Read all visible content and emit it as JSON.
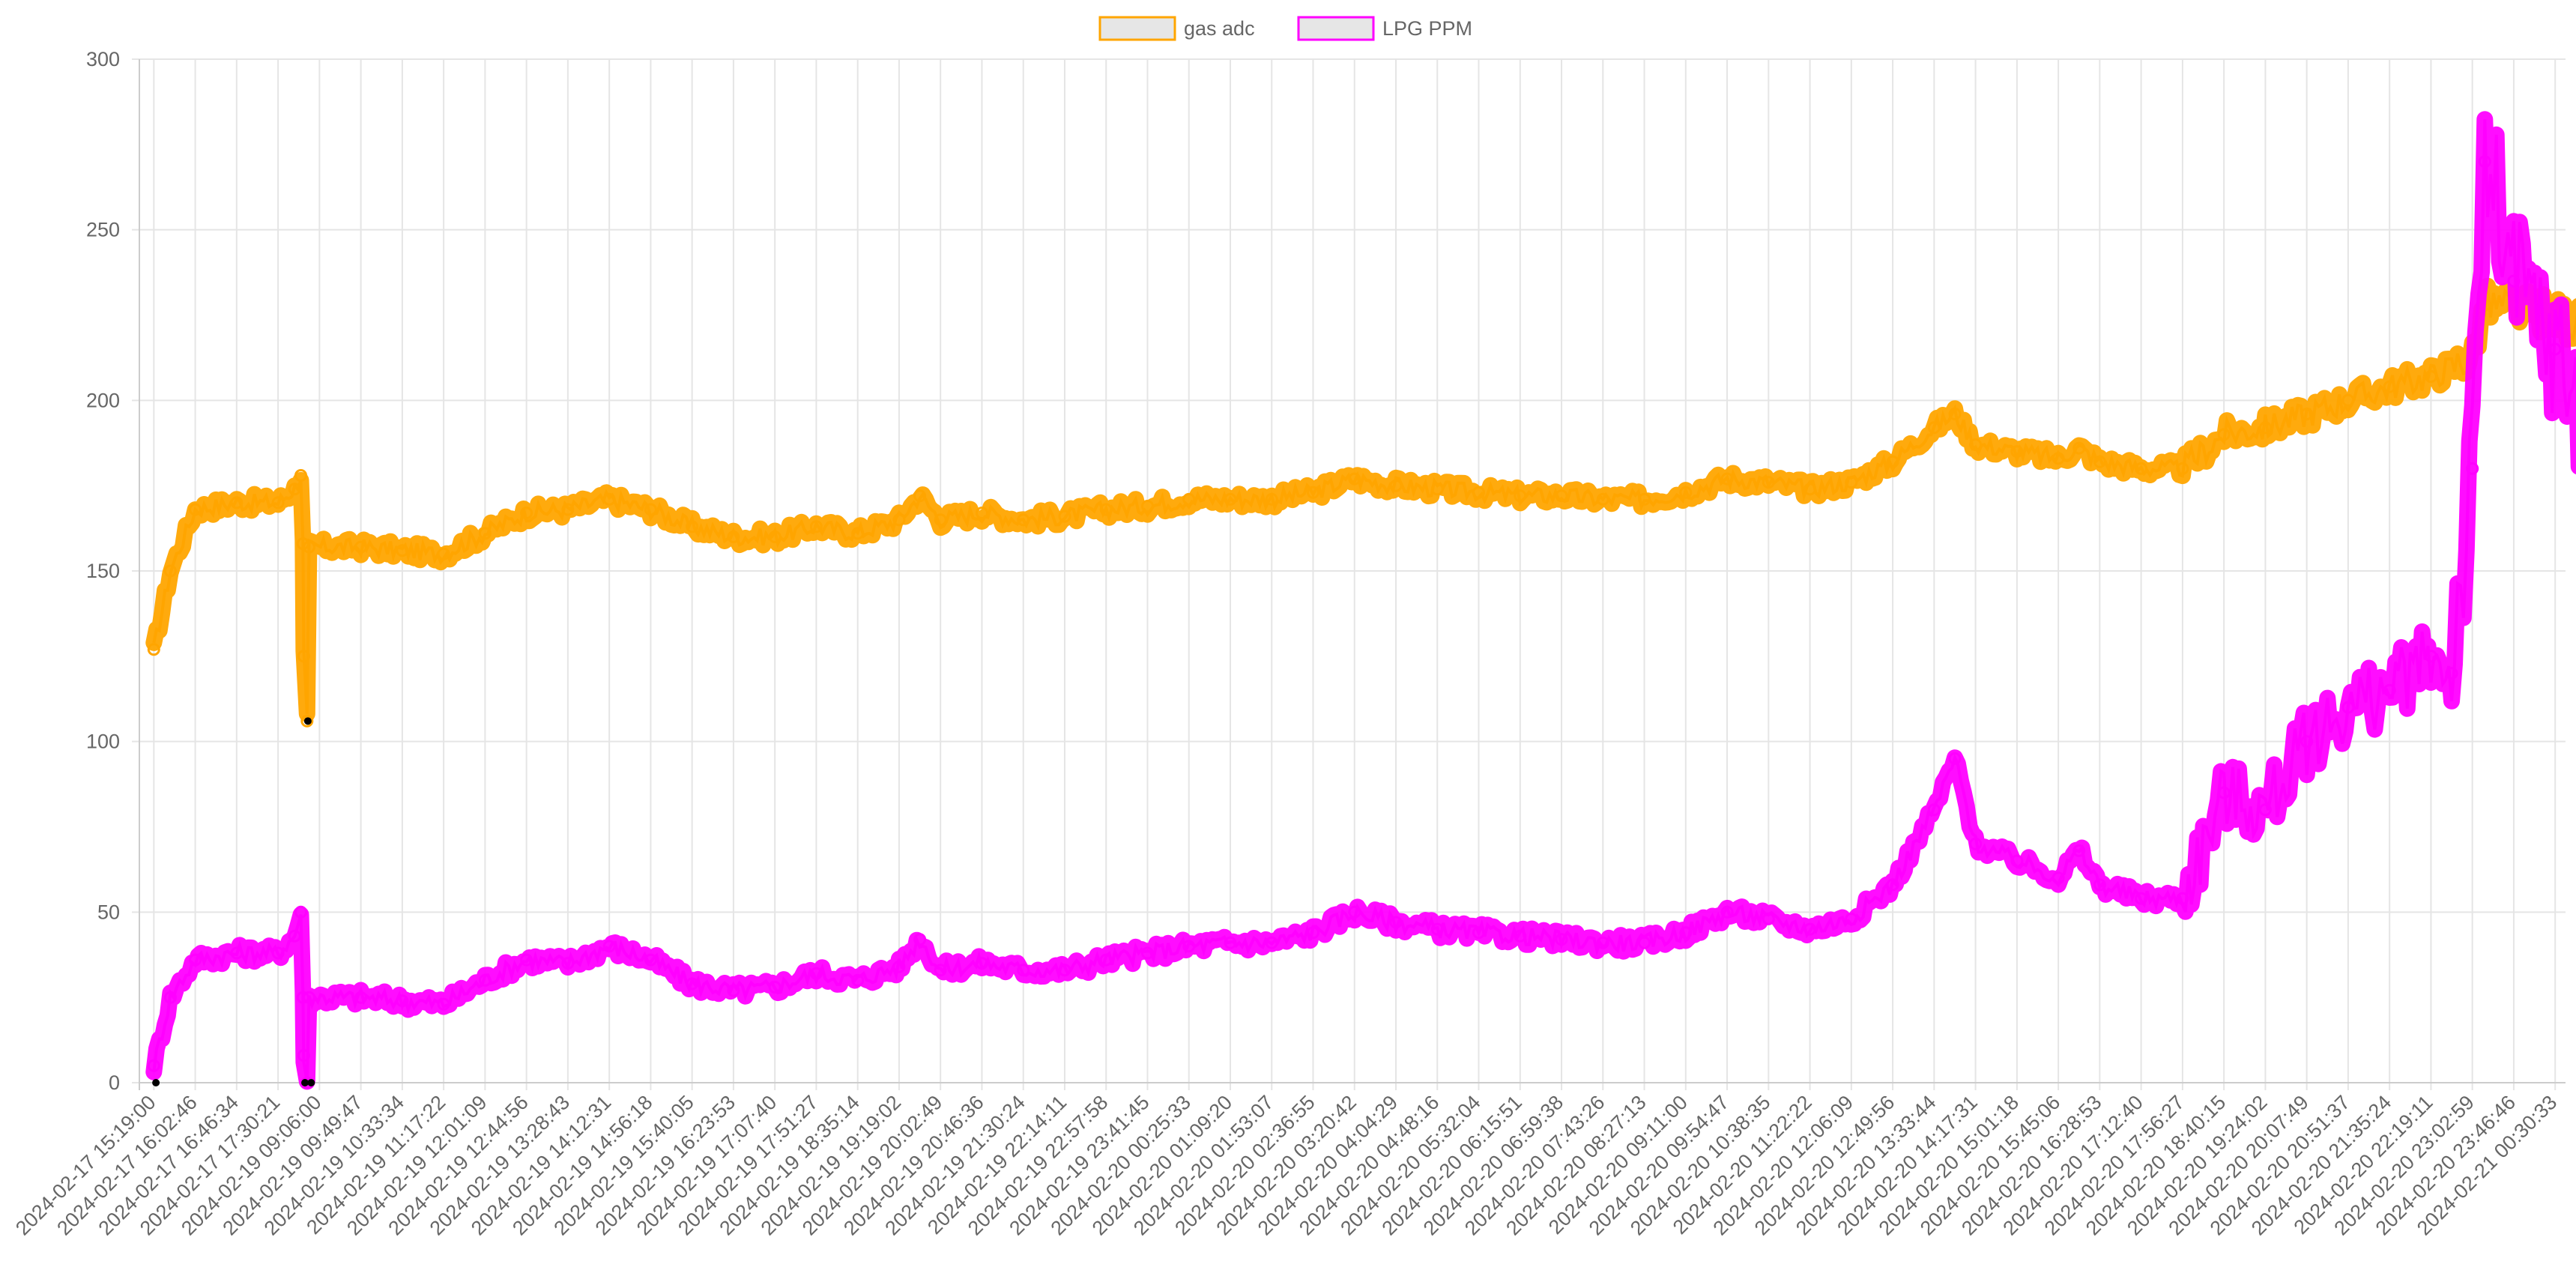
{
  "chart_data": {
    "type": "line",
    "title": "",
    "xlabel": "",
    "ylabel": "",
    "ylim": [
      0,
      300
    ],
    "yticks": [
      0,
      50,
      100,
      150,
      200,
      250,
      300
    ],
    "grid": true,
    "legend_position": "top-center",
    "x_tick_labels": [
      "2024-02-17 15:19:00",
      "2024-02-17 16:02:46",
      "2024-02-17 16:46:34",
      "2024-02-17 17:30:21",
      "2024-02-19 09:06:00",
      "2024-02-19 09:49:47",
      "2024-02-19 10:33:34",
      "2024-02-19 11:17:22",
      "2024-02-19 12:01:09",
      "2024-02-19 12:44:56",
      "2024-02-19 13:28:43",
      "2024-02-19 14:12:31",
      "2024-02-19 14:56:18",
      "2024-02-19 15:40:05",
      "2024-02-19 16:23:53",
      "2024-02-19 17:07:40",
      "2024-02-19 17:51:27",
      "2024-02-19 18:35:14",
      "2024-02-19 19:19:02",
      "2024-02-19 20:02:49",
      "2024-02-19 20:46:36",
      "2024-02-19 21:30:24",
      "2024-02-19 22:14:11",
      "2024-02-19 22:57:58",
      "2024-02-19 23:41:45",
      "2024-02-20 00:25:33",
      "2024-02-20 01:09:20",
      "2024-02-20 01:53:07",
      "2024-02-20 02:36:55",
      "2024-02-20 03:20:42",
      "2024-02-20 04:04:29",
      "2024-02-20 04:48:16",
      "2024-02-20 05:32:04",
      "2024-02-20 06:15:51",
      "2024-02-20 06:59:38",
      "2024-02-20 07:43:26",
      "2024-02-20 08:27:13",
      "2024-02-20 09:11:00",
      "2024-02-20 09:54:47",
      "2024-02-20 10:38:35",
      "2024-02-20 11:22:22",
      "2024-02-20 12:06:09",
      "2024-02-20 12:49:56",
      "2024-02-20 13:33:44",
      "2024-02-20 14:17:31",
      "2024-02-20 15:01:18",
      "2024-02-20 15:45:06",
      "2024-02-20 16:28:53",
      "2024-02-20 17:12:40",
      "2024-02-20 17:56:27",
      "2024-02-20 18:40:15",
      "2024-02-20 19:24:02",
      "2024-02-20 20:07:49",
      "2024-02-20 20:51:37",
      "2024-02-20 21:35:24",
      "2024-02-20 22:19:11",
      "2024-02-20 23:02:59",
      "2024-02-20 23:46:46",
      "2024-02-21 00:30:33"
    ],
    "series": [
      {
        "name": "gas adc",
        "color": "#ffa500",
        "points": [
          [
            0,
            127
          ],
          [
            0.4,
            150
          ],
          [
            1,
            168
          ],
          [
            2,
            170
          ],
          [
            3,
            170
          ],
          [
            3.4,
            174
          ],
          [
            3.55,
            178
          ],
          [
            3.6,
            158
          ],
          [
            3.62,
            125
          ],
          [
            3.7,
            106
          ],
          [
            3.75,
            157
          ],
          [
            5,
            157
          ],
          [
            6,
            156
          ],
          [
            7,
            155
          ],
          [
            8,
            161
          ],
          [
            9,
            167
          ],
          [
            10,
            168
          ],
          [
            11,
            171
          ],
          [
            12,
            168
          ],
          [
            13,
            163
          ],
          [
            14,
            160
          ],
          [
            15,
            160
          ],
          [
            16,
            163
          ],
          [
            17,
            161
          ],
          [
            18,
            165
          ],
          [
            18.5,
            172
          ],
          [
            19,
            165
          ],
          [
            20,
            167
          ],
          [
            21,
            165
          ],
          [
            22,
            166
          ],
          [
            23,
            168
          ],
          [
            24,
            169
          ],
          [
            25,
            171
          ],
          [
            26,
            171
          ],
          [
            27,
            171
          ],
          [
            28,
            173
          ],
          [
            29,
            177
          ],
          [
            30,
            175
          ],
          [
            31,
            174
          ],
          [
            32,
            173
          ],
          [
            33,
            172
          ],
          [
            34,
            172
          ],
          [
            35,
            171
          ],
          [
            36,
            171
          ],
          [
            37,
            173
          ],
          [
            38,
            177
          ],
          [
            39,
            176
          ],
          [
            40,
            174
          ],
          [
            41,
            176
          ],
          [
            42,
            182
          ],
          [
            43,
            192
          ],
          [
            43.5,
            196
          ],
          [
            44,
            187
          ],
          [
            45,
            185
          ],
          [
            46,
            183
          ],
          [
            46.5,
            186
          ],
          [
            47,
            182
          ],
          [
            48,
            180
          ],
          [
            49,
            180
          ],
          [
            50,
            190
          ],
          [
            51,
            192
          ],
          [
            52,
            196
          ],
          [
            53,
            200
          ],
          [
            54,
            204
          ],
          [
            55,
            207
          ],
          [
            56,
            213
          ],
          [
            56.3,
            228
          ],
          [
            57,
            227
          ],
          [
            58,
            225
          ],
          [
            59,
            220
          ],
          [
            60,
            225
          ],
          [
            60.5,
            228
          ]
        ]
      },
      {
        "name": "LPG PPM",
        "color": "#ff00ff",
        "points": [
          [
            0,
            5
          ],
          [
            0.4,
            25
          ],
          [
            1,
            36
          ],
          [
            2,
            38
          ],
          [
            3,
            38
          ],
          [
            3.4,
            43
          ],
          [
            3.55,
            50
          ],
          [
            3.6,
            25
          ],
          [
            3.62,
            8
          ],
          [
            3.7,
            0
          ],
          [
            3.75,
            25
          ],
          [
            5,
            25
          ],
          [
            6,
            24
          ],
          [
            7,
            23
          ],
          [
            8,
            30
          ],
          [
            9,
            36
          ],
          [
            10,
            35
          ],
          [
            11,
            40
          ],
          [
            12,
            36
          ],
          [
            13,
            29
          ],
          [
            14,
            27
          ],
          [
            15,
            28
          ],
          [
            16,
            32
          ],
          [
            17,
            30
          ],
          [
            18,
            34
          ],
          [
            18.5,
            42
          ],
          [
            19,
            33
          ],
          [
            20,
            35
          ],
          [
            21,
            33
          ],
          [
            22,
            33
          ],
          [
            23,
            36
          ],
          [
            24,
            38
          ],
          [
            25,
            40
          ],
          [
            26,
            41
          ],
          [
            27,
            41
          ],
          [
            28,
            44
          ],
          [
            29,
            50
          ],
          [
            30,
            47
          ],
          [
            31,
            45
          ],
          [
            32,
            44
          ],
          [
            33,
            43
          ],
          [
            34,
            42
          ],
          [
            35,
            41
          ],
          [
            36,
            41
          ],
          [
            37,
            44
          ],
          [
            38,
            50
          ],
          [
            39,
            48
          ],
          [
            40,
            45
          ],
          [
            41,
            48
          ],
          [
            42,
            58
          ],
          [
            43,
            80
          ],
          [
            43.5,
            95
          ],
          [
            44,
            70
          ],
          [
            45,
            65
          ],
          [
            46,
            60
          ],
          [
            46.5,
            68
          ],
          [
            47,
            58
          ],
          [
            48,
            54
          ],
          [
            49,
            54
          ],
          [
            50,
            85
          ],
          [
            51,
            80
          ],
          [
            52,
            100
          ],
          [
            53,
            110
          ],
          [
            54,
            115
          ],
          [
            55,
            125
          ],
          [
            55.5,
            120
          ],
          [
            56,
            180
          ],
          [
            56.3,
            270
          ],
          [
            57,
            235
          ],
          [
            58,
            215
          ],
          [
            59,
            190
          ],
          [
            59.6,
            155
          ],
          [
            60,
            220
          ],
          [
            60.5,
            255
          ]
        ]
      }
    ]
  }
}
